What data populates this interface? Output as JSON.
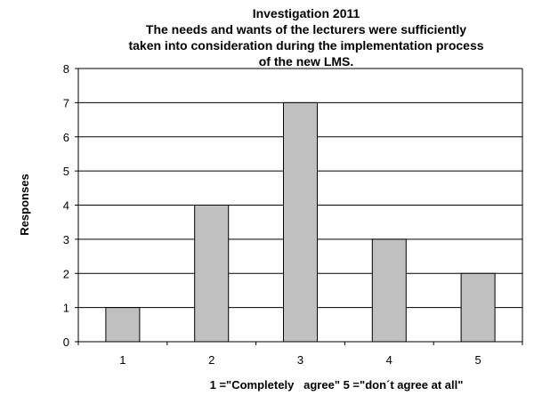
{
  "chart_data": {
    "type": "bar",
    "title_lines": [
      "Investigation 2011",
      "The needs and wants of the lecturers were sufficiently",
      "taken into consideration during the implementation process",
      "of the new LMS."
    ],
    "xlabel": "1 =\"Completely   agree\" 5 =\"don´t agree at all\"",
    "ylabel": "Responses",
    "categories": [
      "1",
      "2",
      "3",
      "4",
      "5"
    ],
    "values": [
      1,
      4,
      7,
      3,
      2
    ],
    "ylim": [
      0,
      8
    ],
    "yticks": [
      "0",
      "1",
      "2",
      "3",
      "4",
      "5",
      "6",
      "7",
      "8"
    ],
    "grid": true,
    "bar_color": "#c0c0c0",
    "bar_edge_color": "#000000"
  }
}
